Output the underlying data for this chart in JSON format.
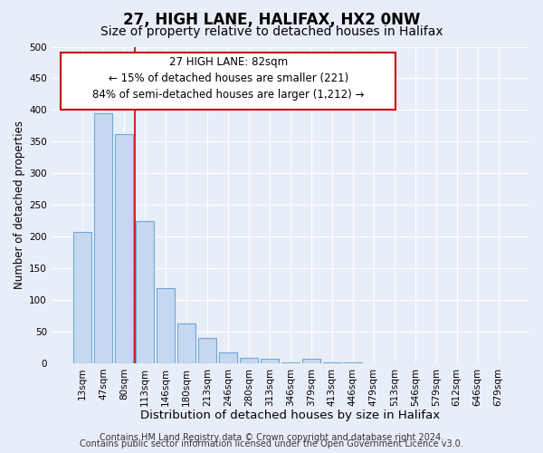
{
  "title": "27, HIGH LANE, HALIFAX, HX2 0NW",
  "subtitle": "Size of property relative to detached houses in Halifax",
  "xlabel": "Distribution of detached houses by size in Halifax",
  "ylabel": "Number of detached properties",
  "bar_labels": [
    "13sqm",
    "47sqm",
    "80sqm",
    "113sqm",
    "146sqm",
    "180sqm",
    "213sqm",
    "246sqm",
    "280sqm",
    "313sqm",
    "346sqm",
    "379sqm",
    "413sqm",
    "446sqm",
    "479sqm",
    "513sqm",
    "546sqm",
    "579sqm",
    "612sqm",
    "646sqm",
    "679sqm"
  ],
  "bar_heights": [
    207,
    395,
    362,
    224,
    119,
    63,
    40,
    17,
    8,
    7,
    1,
    7,
    1,
    1,
    0,
    0,
    0,
    0,
    0,
    0,
    0
  ],
  "bar_color": "#c5d8f0",
  "bar_edge_color": "#6ea8d8",
  "vline_x_index": 2,
  "vline_color": "#cc0000",
  "ylim": [
    0,
    500
  ],
  "yticks": [
    0,
    50,
    100,
    150,
    200,
    250,
    300,
    350,
    400,
    450,
    500
  ],
  "ann_line1": "27 HIGH LANE: 82sqm",
  "ann_line2": "← 15% of detached houses are smaller (221)",
  "ann_line3": "84% of semi-detached houses are larger (1,212) →",
  "footer1": "Contains HM Land Registry data © Crown copyright and database right 2024.",
  "footer2": "Contains public sector information licensed under the Open Government Licence v3.0.",
  "background_color": "#e8eef8",
  "plot_background": "#e8eef8",
  "grid_color": "#ffffff",
  "title_fontsize": 12,
  "subtitle_fontsize": 10,
  "xlabel_fontsize": 9.5,
  "ylabel_fontsize": 8.5,
  "tick_fontsize": 7.5,
  "ann_fontsize": 8.5,
  "footer_fontsize": 7
}
